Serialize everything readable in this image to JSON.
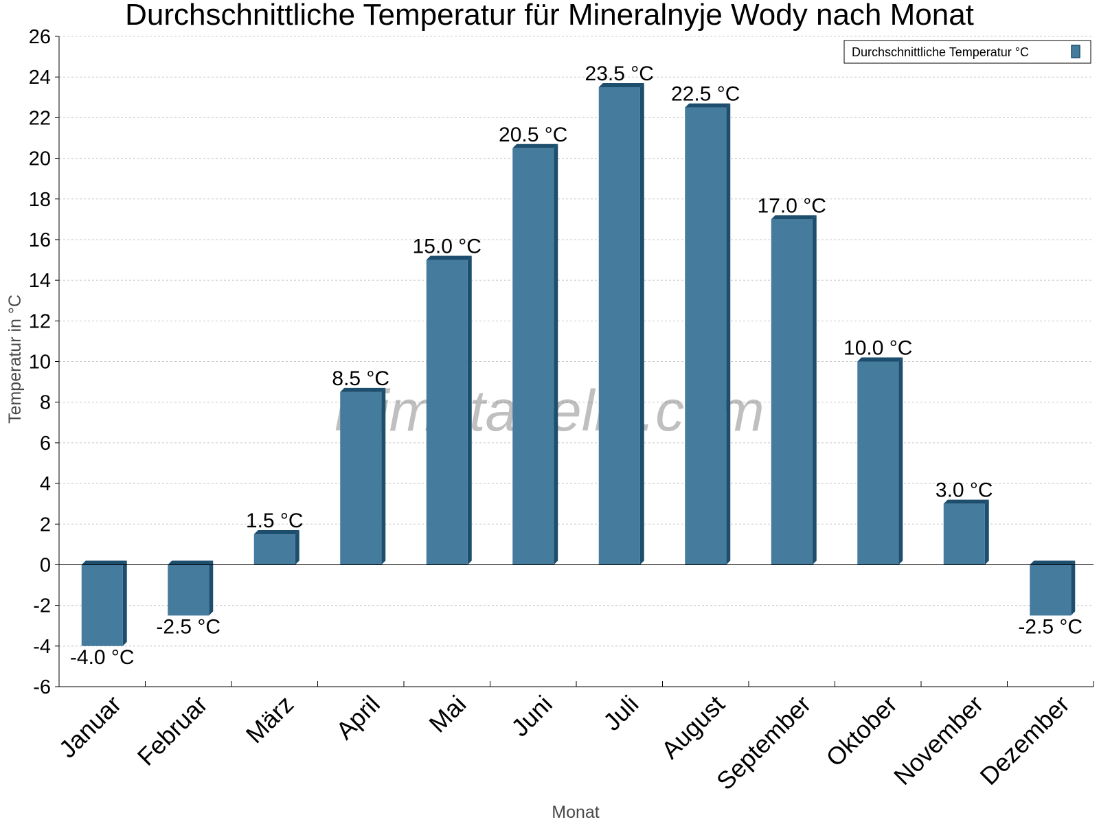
{
  "chart_data": {
    "type": "bar",
    "title": "Durchschnittliche Temperatur für Mineralnyje Wody nach Monat",
    "xlabel": "Monat",
    "ylabel": "Temperatur in °C",
    "categories": [
      "Januar",
      "Februar",
      "März",
      "April",
      "Mai",
      "Juni",
      "Juli",
      "August",
      "September",
      "Oktober",
      "November",
      "Dezember"
    ],
    "series": [
      {
        "name": "Durchschnittliche Temperatur °C",
        "values": [
          -4.0,
          -2.5,
          1.5,
          8.5,
          15.0,
          20.5,
          23.5,
          22.5,
          17.0,
          10.0,
          3.0,
          -2.5
        ],
        "labels": [
          "-4.0 °C",
          "-2.5 °C",
          "1.5 °C",
          "8.5 °C",
          "15.0 °C",
          "20.5 °C",
          "23.5 °C",
          "22.5 °C",
          "17.0 °C",
          "10.0 °C",
          "3.0 °C",
          "-2.5 °C"
        ]
      }
    ],
    "ylim": [
      -6,
      26
    ],
    "yticks": [
      -6,
      -4,
      -2,
      0,
      2,
      4,
      6,
      8,
      10,
      12,
      14,
      16,
      18,
      20,
      22,
      24,
      26
    ],
    "grid": true,
    "legend_position": "top-right",
    "colors": {
      "bar": "#457b9d",
      "bar_shade": "#1d4e6e",
      "grid": "#c8c8c8"
    },
    "watermark": "klimatabelle.com"
  }
}
